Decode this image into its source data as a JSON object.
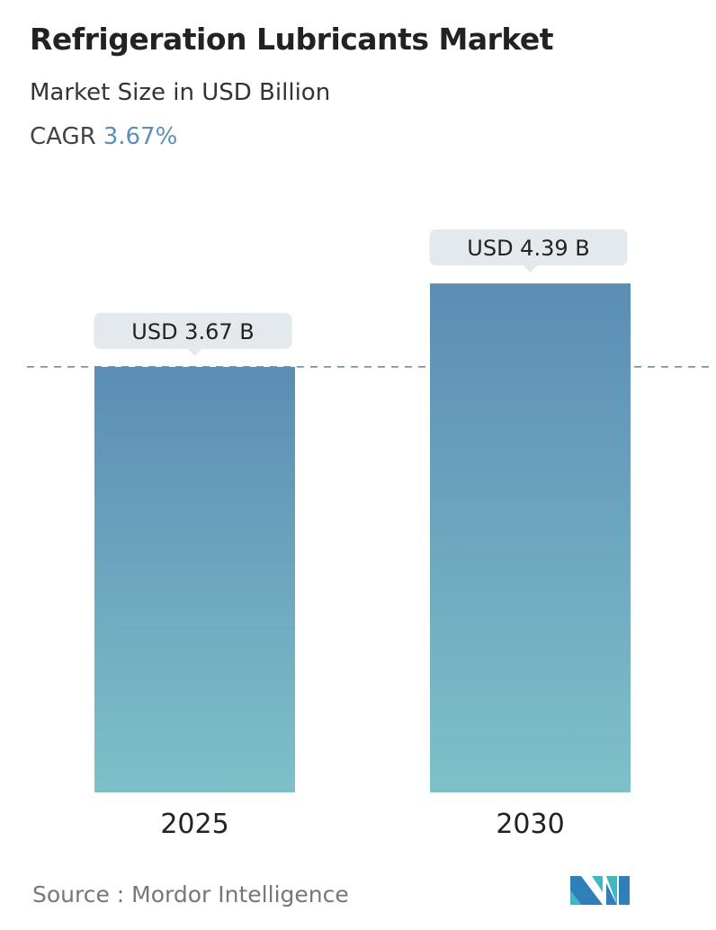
{
  "header": {
    "title": "Refrigeration Lubricants Market",
    "subtitle": "Market Size in USD Billion",
    "cagr_label": "CAGR",
    "cagr_value": "3.67%"
  },
  "chart_data": {
    "type": "bar",
    "categories": [
      "2025",
      "2030"
    ],
    "values": [
      3.67,
      4.39
    ],
    "data_labels": [
      "USD 3.67 B",
      "USD 4.39 B"
    ],
    "title": "Refrigeration Lubricants Market",
    "ylabel": "Market Size in USD Billion",
    "grid": false,
    "reference_line": 3.67,
    "colors": {
      "bar_top": "#5b8db5",
      "bar_bottom": "#7fc0c8",
      "label_bg": "#e3e9ec",
      "reference_line": "#5a86a8"
    }
  },
  "footer": {
    "source": "Source :  Mordor Intelligence",
    "logo_text": "Mordor Intelligence"
  }
}
